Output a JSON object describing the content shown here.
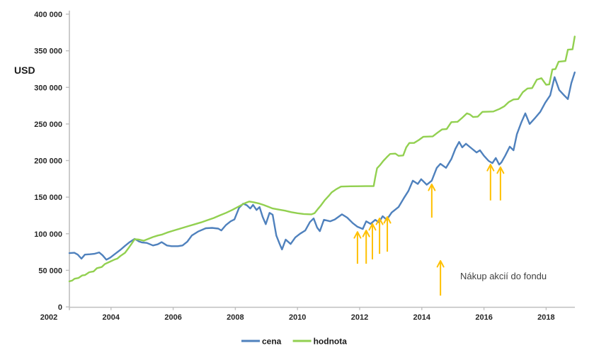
{
  "chart_data": {
    "type": "line",
    "title": "",
    "ylabel": "USD",
    "xlabel": "",
    "grid": false,
    "axis_color": "#BFBFBF",
    "x_axis": {
      "range": [
        2002,
        2019
      ],
      "ticks": [
        {
          "v": 2002,
          "label": "2002"
        },
        {
          "v": 2004,
          "label": "2004"
        },
        {
          "v": 2006,
          "label": "2006"
        },
        {
          "v": 2008,
          "label": "2008"
        },
        {
          "v": 2010,
          "label": "2010"
        },
        {
          "v": 2012,
          "label": "2012"
        },
        {
          "v": 2014,
          "label": "2014"
        },
        {
          "v": 2016,
          "label": "2016"
        },
        {
          "v": 2018,
          "label": "2018"
        }
      ]
    },
    "y_axis": {
      "range": [
        0,
        400000
      ],
      "ticks": [
        {
          "v": 0,
          "label": "0"
        },
        {
          "v": 50000,
          "label": "50 000"
        },
        {
          "v": 100000,
          "label": "100 000"
        },
        {
          "v": 150000,
          "label": "150 000"
        },
        {
          "v": 200000,
          "label": "200 000"
        },
        {
          "v": 250000,
          "label": "250 000"
        },
        {
          "v": 300000,
          "label": "300 000"
        },
        {
          "v": 350000,
          "label": "350 000"
        },
        {
          "v": 400000,
          "label": "400 000"
        }
      ]
    },
    "legend": {
      "position": "bottom-center",
      "items": [
        {
          "name": "cena",
          "color": "#4F81BD"
        },
        {
          "name": "hodnota",
          "color": "#92D050"
        }
      ]
    },
    "series": [
      {
        "name": "cena",
        "color": "#4F81BD",
        "points": [
          [
            2002.66,
            73500
          ],
          [
            2002.82,
            74000
          ],
          [
            2002.93,
            71500
          ],
          [
            2003.05,
            66000
          ],
          [
            2003.16,
            71500
          ],
          [
            2003.32,
            72000
          ],
          [
            2003.46,
            72500
          ],
          [
            2003.62,
            74500
          ],
          [
            2003.73,
            70500
          ],
          [
            2003.85,
            64500
          ],
          [
            2003.98,
            67500
          ],
          [
            2004.1,
            71500
          ],
          [
            2004.3,
            78000
          ],
          [
            2004.45,
            83500
          ],
          [
            2004.6,
            88500
          ],
          [
            2004.76,
            93000
          ],
          [
            2004.9,
            89500
          ],
          [
            2005.0,
            88000
          ],
          [
            2005.15,
            87500
          ],
          [
            2005.35,
            84000
          ],
          [
            2005.5,
            85500
          ],
          [
            2005.63,
            88500
          ],
          [
            2005.8,
            84000
          ],
          [
            2005.95,
            83000
          ],
          [
            2006.15,
            83000
          ],
          [
            2006.3,
            84000
          ],
          [
            2006.45,
            89000
          ],
          [
            2006.6,
            97500
          ],
          [
            2006.8,
            103000
          ],
          [
            2007.05,
            107500
          ],
          [
            2007.25,
            108000
          ],
          [
            2007.45,
            107000
          ],
          [
            2007.55,
            104500
          ],
          [
            2007.7,
            112000
          ],
          [
            2007.85,
            117000
          ],
          [
            2007.97,
            119500
          ],
          [
            2008.12,
            135500
          ],
          [
            2008.25,
            141000
          ],
          [
            2008.37,
            139000
          ],
          [
            2008.48,
            134500
          ],
          [
            2008.57,
            139500
          ],
          [
            2008.68,
            132500
          ],
          [
            2008.78,
            136500
          ],
          [
            2008.88,
            123000
          ],
          [
            2008.98,
            113000
          ],
          [
            2009.1,
            128500
          ],
          [
            2009.2,
            126000
          ],
          [
            2009.32,
            97500
          ],
          [
            2009.43,
            85500
          ],
          [
            2009.5,
            78500
          ],
          [
            2009.62,
            92000
          ],
          [
            2009.78,
            86000
          ],
          [
            2009.93,
            95000
          ],
          [
            2010.08,
            100000
          ],
          [
            2010.25,
            104500
          ],
          [
            2010.4,
            116000
          ],
          [
            2010.52,
            121000
          ],
          [
            2010.63,
            108500
          ],
          [
            2010.72,
            103500
          ],
          [
            2010.85,
            119000
          ],
          [
            2011.05,
            117000
          ],
          [
            2011.2,
            119500
          ],
          [
            2011.43,
            126500
          ],
          [
            2011.6,
            122000
          ],
          [
            2011.78,
            114500
          ],
          [
            2011.93,
            109500
          ],
          [
            2012.1,
            106500
          ],
          [
            2012.21,
            117000
          ],
          [
            2012.35,
            113500
          ],
          [
            2012.5,
            119000
          ],
          [
            2012.62,
            115500
          ],
          [
            2012.74,
            124000
          ],
          [
            2012.87,
            119000
          ],
          [
            2013.03,
            129000
          ],
          [
            2013.25,
            136500
          ],
          [
            2013.42,
            148500
          ],
          [
            2013.57,
            158500
          ],
          [
            2013.71,
            172500
          ],
          [
            2013.87,
            168000
          ],
          [
            2013.98,
            174500
          ],
          [
            2014.16,
            167000
          ],
          [
            2014.32,
            172500
          ],
          [
            2014.48,
            190000
          ],
          [
            2014.6,
            195500
          ],
          [
            2014.78,
            190000
          ],
          [
            2014.95,
            202000
          ],
          [
            2015.08,
            216000
          ],
          [
            2015.2,
            225500
          ],
          [
            2015.3,
            218000
          ],
          [
            2015.42,
            223000
          ],
          [
            2015.62,
            216000
          ],
          [
            2015.76,
            211000
          ],
          [
            2015.87,
            214000
          ],
          [
            2016.0,
            206500
          ],
          [
            2016.15,
            199500
          ],
          [
            2016.27,
            196500
          ],
          [
            2016.38,
            203500
          ],
          [
            2016.49,
            194500
          ],
          [
            2016.56,
            197500
          ],
          [
            2016.68,
            206500
          ],
          [
            2016.83,
            219000
          ],
          [
            2016.95,
            214000
          ],
          [
            2017.06,
            236000
          ],
          [
            2017.2,
            252000
          ],
          [
            2017.33,
            264500
          ],
          [
            2017.47,
            250000
          ],
          [
            2017.63,
            257500
          ],
          [
            2017.81,
            266500
          ],
          [
            2017.97,
            279000
          ],
          [
            2018.13,
            289000
          ],
          [
            2018.27,
            314000
          ],
          [
            2018.42,
            296500
          ],
          [
            2018.55,
            290500
          ],
          [
            2018.7,
            284000
          ],
          [
            2018.81,
            306000
          ],
          [
            2018.92,
            320500
          ]
        ]
      },
      {
        "name": "hodnota",
        "color": "#92D050",
        "points": [
          [
            2002.66,
            35000
          ],
          [
            2002.75,
            36000
          ],
          [
            2002.83,
            38500
          ],
          [
            2002.95,
            39500
          ],
          [
            2003.07,
            43000
          ],
          [
            2003.16,
            43500
          ],
          [
            2003.3,
            47500
          ],
          [
            2003.44,
            48500
          ],
          [
            2003.55,
            53000
          ],
          [
            2003.7,
            54500
          ],
          [
            2003.8,
            58500
          ],
          [
            2003.95,
            61500
          ],
          [
            2004.1,
            64500
          ],
          [
            2004.2,
            66000
          ],
          [
            2004.3,
            69500
          ],
          [
            2004.45,
            74000
          ],
          [
            2004.55,
            79500
          ],
          [
            2004.65,
            85500
          ],
          [
            2004.76,
            92500
          ],
          [
            2004.9,
            92000
          ],
          [
            2005.05,
            90500
          ],
          [
            2005.2,
            93000
          ],
          [
            2005.35,
            95500
          ],
          [
            2005.5,
            97500
          ],
          [
            2005.65,
            99000
          ],
          [
            2005.8,
            101500
          ],
          [
            2005.95,
            103500
          ],
          [
            2006.1,
            105500
          ],
          [
            2006.3,
            108000
          ],
          [
            2006.5,
            110500
          ],
          [
            2006.7,
            113000
          ],
          [
            2006.9,
            115500
          ],
          [
            2007.1,
            118500
          ],
          [
            2007.3,
            121500
          ],
          [
            2007.5,
            125000
          ],
          [
            2007.7,
            128500
          ],
          [
            2007.9,
            132500
          ],
          [
            2008.1,
            137000
          ],
          [
            2008.25,
            140500
          ],
          [
            2008.35,
            142500
          ],
          [
            2008.45,
            144000
          ],
          [
            2008.6,
            143000
          ],
          [
            2008.75,
            141500
          ],
          [
            2008.9,
            139500
          ],
          [
            2009.05,
            137000
          ],
          [
            2009.2,
            134500
          ],
          [
            2009.4,
            133000
          ],
          [
            2009.6,
            131500
          ],
          [
            2009.8,
            129500
          ],
          [
            2010.0,
            128000
          ],
          [
            2010.2,
            127000
          ],
          [
            2010.45,
            126500
          ],
          [
            2010.55,
            128000
          ],
          [
            2010.65,
            133500
          ],
          [
            2010.75,
            138500
          ],
          [
            2010.88,
            146000
          ],
          [
            2011.0,
            151500
          ],
          [
            2011.1,
            156500
          ],
          [
            2011.25,
            161000
          ],
          [
            2011.4,
            164500
          ],
          [
            2011.7,
            164800
          ],
          [
            2012.2,
            165000
          ],
          [
            2012.45,
            165000
          ],
          [
            2012.5,
            177000
          ],
          [
            2012.56,
            189500
          ],
          [
            2012.65,
            193500
          ],
          [
            2012.76,
            199500
          ],
          [
            2012.87,
            204500
          ],
          [
            2012.98,
            209000
          ],
          [
            2013.15,
            209500
          ],
          [
            2013.25,
            206500
          ],
          [
            2013.4,
            207000
          ],
          [
            2013.5,
            218000
          ],
          [
            2013.6,
            224000
          ],
          [
            2013.75,
            224000
          ],
          [
            2013.9,
            228000
          ],
          [
            2014.05,
            232500
          ],
          [
            2014.35,
            233000
          ],
          [
            2014.5,
            238000
          ],
          [
            2014.65,
            242500
          ],
          [
            2014.8,
            243000
          ],
          [
            2014.95,
            252500
          ],
          [
            2015.15,
            253000
          ],
          [
            2015.3,
            258500
          ],
          [
            2015.45,
            264500
          ],
          [
            2015.55,
            263000
          ],
          [
            2015.65,
            259500
          ],
          [
            2015.8,
            260000
          ],
          [
            2015.95,
            266500
          ],
          [
            2016.3,
            267000
          ],
          [
            2016.5,
            270500
          ],
          [
            2016.65,
            274000
          ],
          [
            2016.8,
            280000
          ],
          [
            2016.95,
            283500
          ],
          [
            2017.1,
            284000
          ],
          [
            2017.25,
            293500
          ],
          [
            2017.4,
            298500
          ],
          [
            2017.55,
            299000
          ],
          [
            2017.7,
            310500
          ],
          [
            2017.85,
            312500
          ],
          [
            2018.0,
            303500
          ],
          [
            2018.1,
            304000
          ],
          [
            2018.2,
            324500
          ],
          [
            2018.3,
            325000
          ],
          [
            2018.4,
            335000
          ],
          [
            2018.62,
            336000
          ],
          [
            2018.7,
            351500
          ],
          [
            2018.85,
            352000
          ],
          [
            2018.92,
            369500
          ]
        ]
      }
    ],
    "purchase_arrows": {
      "color": "#FFC000",
      "arrows": [
        {
          "year": 2011.93,
          "tip_usd": 102500,
          "base_usd": 59000
        },
        {
          "year": 2012.21,
          "tip_usd": 104500,
          "base_usd": 59000
        },
        {
          "year": 2012.41,
          "tip_usd": 113500,
          "base_usd": 65000
        },
        {
          "year": 2012.64,
          "tip_usd": 121000,
          "base_usd": 72500
        },
        {
          "year": 2012.89,
          "tip_usd": 123000,
          "base_usd": 75500
        },
        {
          "year": 2014.32,
          "tip_usd": 167500,
          "base_usd": 122000
        },
        {
          "year": 2016.21,
          "tip_usd": 194500,
          "base_usd": 145500
        },
        {
          "year": 2016.53,
          "tip_usd": 191000,
          "base_usd": 145500
        },
        {
          "year": 2014.6,
          "tip_usd": 63000,
          "base_usd": 15500
        }
      ]
    },
    "annotation": {
      "text": "Nákup akcií do fondu"
    }
  }
}
